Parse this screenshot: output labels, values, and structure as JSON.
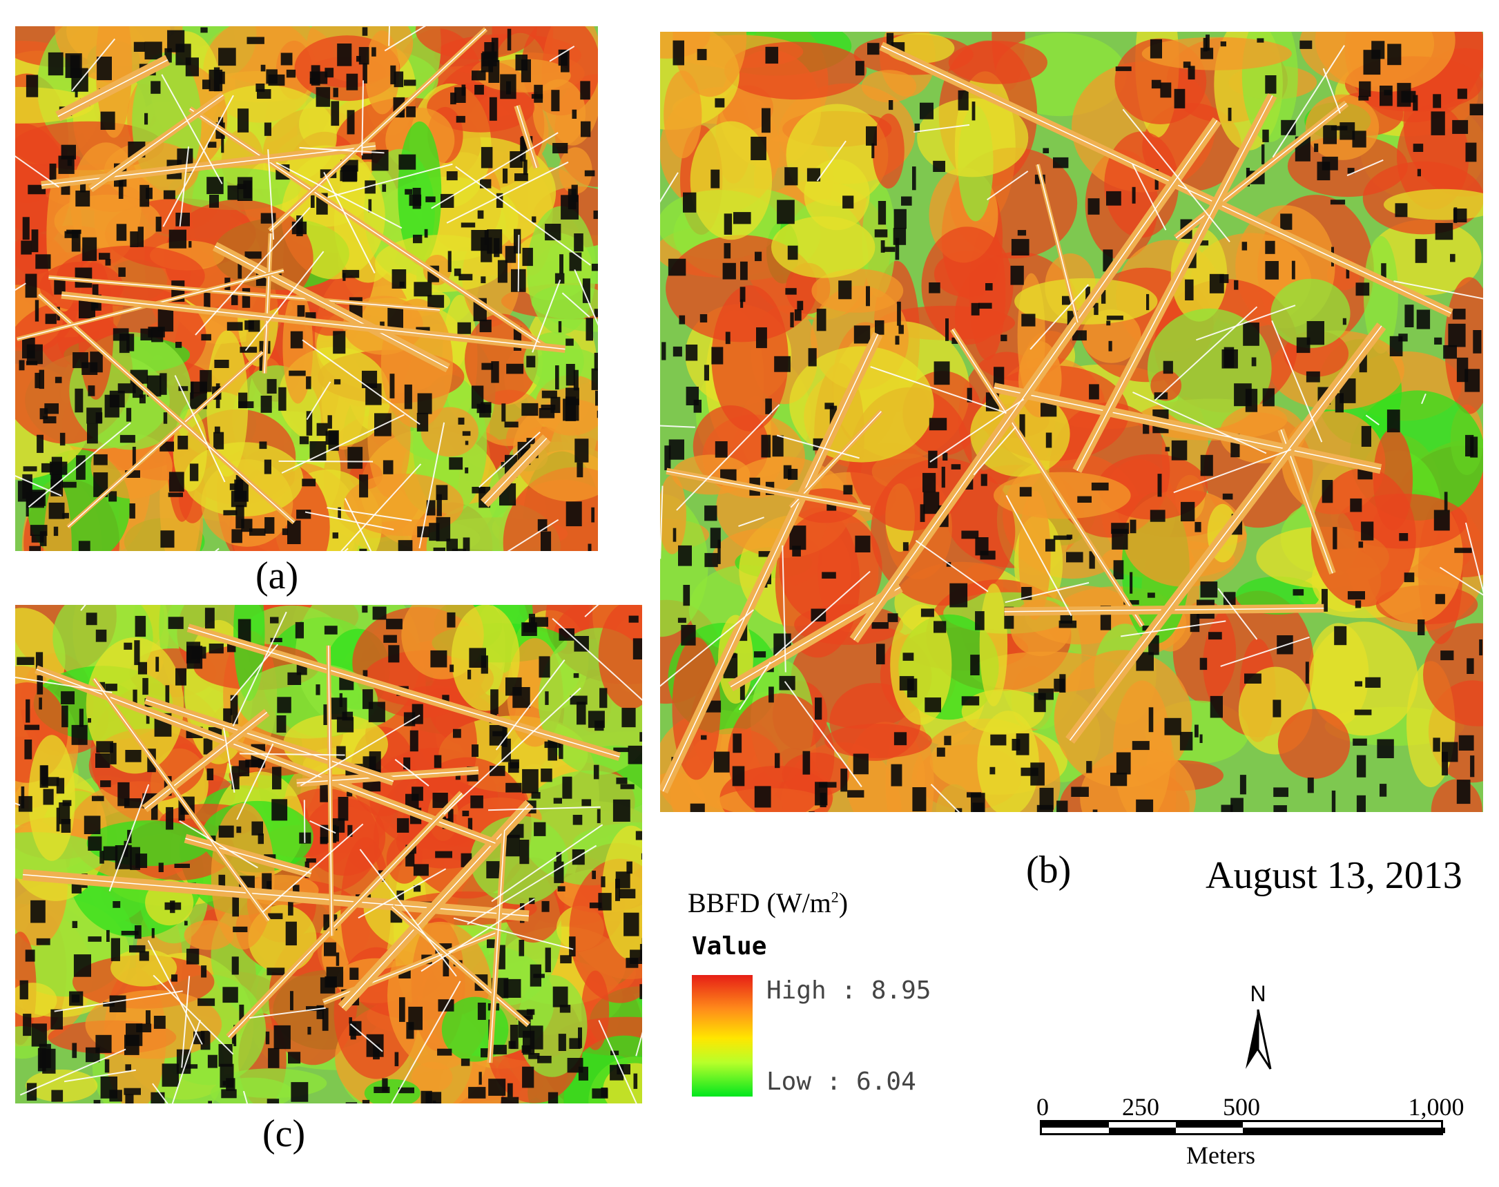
{
  "panels": [
    {
      "id": "a",
      "label": "(a)"
    },
    {
      "id": "b",
      "label": "(b)"
    },
    {
      "id": "c",
      "label": "(c)"
    }
  ],
  "date": "August 13, 2013",
  "legend": {
    "title_main": "BBFD (W/m",
    "title_sup": "2",
    "title_end": ")",
    "subtitle": "Value",
    "high_label": "High : 8.95",
    "low_label": "Low : 6.04",
    "colors": {
      "high": "#e61e16",
      "mid_high": "#ff8c1a",
      "mid": "#ffe600",
      "mid_low": "#b8ff2a",
      "low": "#00e61e"
    }
  },
  "north_arrow": {
    "label": "N"
  },
  "scale_bar": {
    "ticks": [
      "0",
      "250",
      "500",
      "1,000"
    ],
    "units": "Meters"
  },
  "map_colors": {
    "background": "#7ec850",
    "high": "#e8461e",
    "orange": "#f39a2a",
    "yellow": "#e6e02a",
    "green": "#32e01e",
    "light_green": "#8fe63a",
    "shadow": "#0a0a0a",
    "road": "#f0b050",
    "road_edge": "#ffffff"
  }
}
